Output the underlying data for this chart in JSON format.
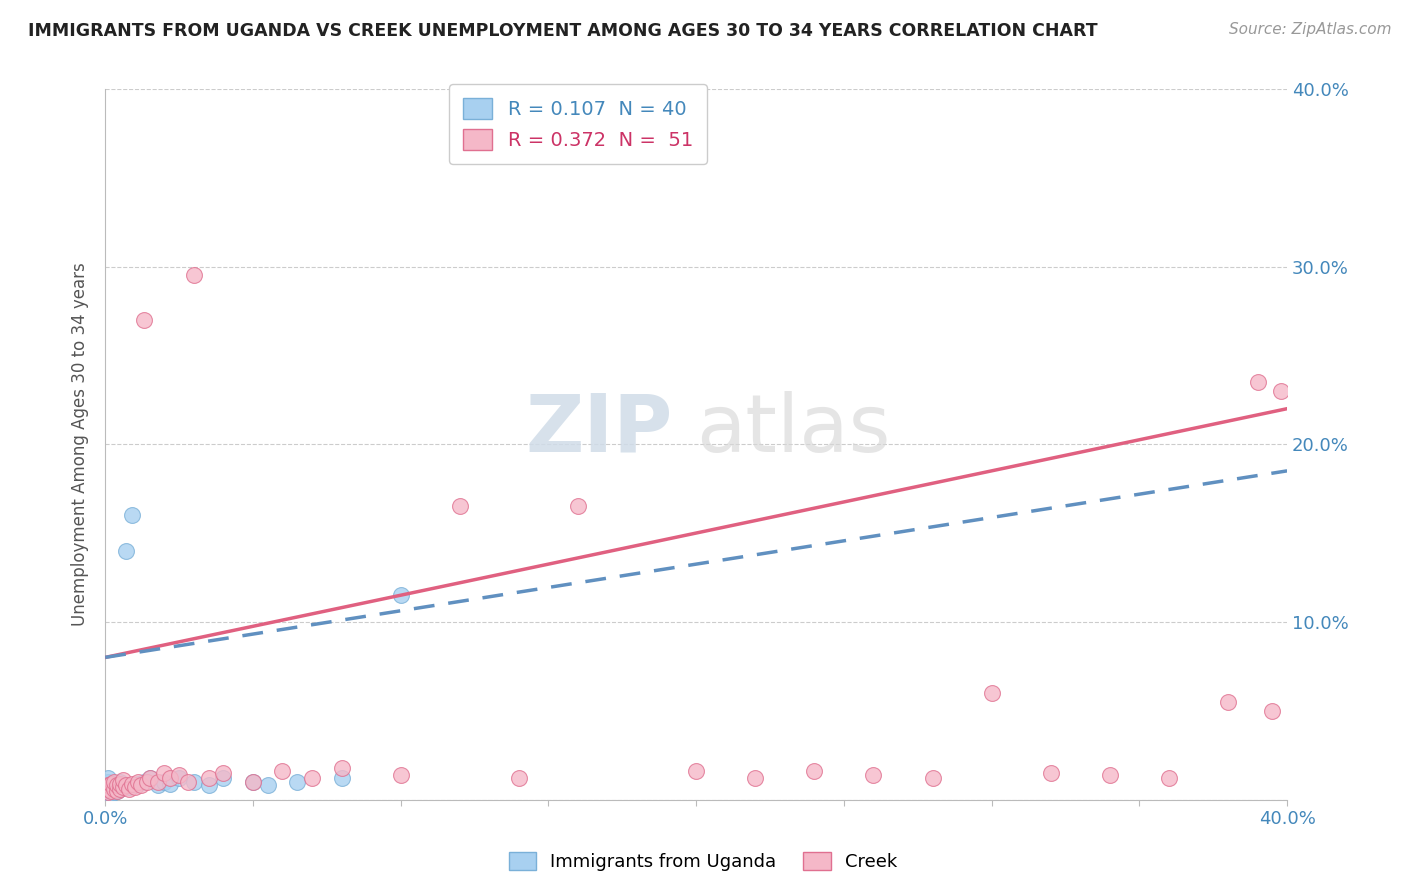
{
  "title": "IMMIGRANTS FROM UGANDA VS CREEK UNEMPLOYMENT AMONG AGES 30 TO 34 YEARS CORRELATION CHART",
  "source": "Source: ZipAtlas.com",
  "ylabel": "Unemployment Among Ages 30 to 34 years",
  "xlim": [
    0.0,
    0.4
  ],
  "ylim": [
    0.0,
    0.4
  ],
  "xticks": [
    0.0,
    0.05,
    0.1,
    0.15,
    0.2,
    0.25,
    0.3,
    0.35,
    0.4
  ],
  "yticks": [
    0.0,
    0.1,
    0.2,
    0.3,
    0.4
  ],
  "legend1_text": "R = 0.107  N = 40",
  "legend2_text": "R = 0.372  N =  51",
  "legend_label1": "Immigrants from Uganda",
  "legend_label2": "Creek",
  "color_uganda": "#a8d0f0",
  "color_creek": "#f5b8c8",
  "edge_uganda": "#7ab0d8",
  "edge_creek": "#e07090",
  "trendline_uganda_color": "#6090c0",
  "trendline_creek_color": "#e06080",
  "watermark_zip": "ZIP",
  "watermark_atlas": "atlas",
  "background_color": "#ffffff",
  "grid_color": "#cccccc",
  "uganda_x": [
    0.001,
    0.001,
    0.001,
    0.001,
    0.001,
    0.001,
    0.001,
    0.001,
    0.001,
    0.001,
    0.002,
    0.002,
    0.002,
    0.002,
    0.003,
    0.003,
    0.004,
    0.004,
    0.005,
    0.005,
    0.006,
    0.007,
    0.008,
    0.009,
    0.01,
    0.011,
    0.013,
    0.015,
    0.018,
    0.02,
    0.022,
    0.025,
    0.03,
    0.035,
    0.04,
    0.05,
    0.055,
    0.065,
    0.08,
    0.1
  ],
  "uganda_y": [
    0.002,
    0.003,
    0.004,
    0.005,
    0.006,
    0.007,
    0.008,
    0.009,
    0.01,
    0.012,
    0.003,
    0.005,
    0.007,
    0.008,
    0.004,
    0.006,
    0.005,
    0.008,
    0.006,
    0.01,
    0.008,
    0.14,
    0.007,
    0.16,
    0.008,
    0.009,
    0.01,
    0.012,
    0.008,
    0.01,
    0.009,
    0.012,
    0.01,
    0.008,
    0.012,
    0.01,
    0.008,
    0.01,
    0.012,
    0.115
  ],
  "creek_x": [
    0.001,
    0.001,
    0.001,
    0.002,
    0.002,
    0.003,
    0.003,
    0.004,
    0.004,
    0.005,
    0.005,
    0.006,
    0.006,
    0.007,
    0.008,
    0.009,
    0.01,
    0.011,
    0.012,
    0.013,
    0.014,
    0.015,
    0.018,
    0.02,
    0.022,
    0.025,
    0.028,
    0.03,
    0.035,
    0.04,
    0.05,
    0.06,
    0.07,
    0.08,
    0.1,
    0.12,
    0.14,
    0.16,
    0.2,
    0.22,
    0.24,
    0.26,
    0.28,
    0.3,
    0.32,
    0.34,
    0.36,
    0.38,
    0.39,
    0.395,
    0.398
  ],
  "creek_y": [
    0.004,
    0.006,
    0.008,
    0.005,
    0.009,
    0.006,
    0.01,
    0.005,
    0.008,
    0.006,
    0.009,
    0.007,
    0.011,
    0.008,
    0.006,
    0.009,
    0.007,
    0.01,
    0.008,
    0.27,
    0.01,
    0.012,
    0.01,
    0.015,
    0.012,
    0.014,
    0.01,
    0.295,
    0.012,
    0.015,
    0.01,
    0.016,
    0.012,
    0.018,
    0.014,
    0.165,
    0.012,
    0.165,
    0.016,
    0.012,
    0.016,
    0.014,
    0.012,
    0.06,
    0.015,
    0.014,
    0.012,
    0.055,
    0.235,
    0.05,
    0.23
  ]
}
